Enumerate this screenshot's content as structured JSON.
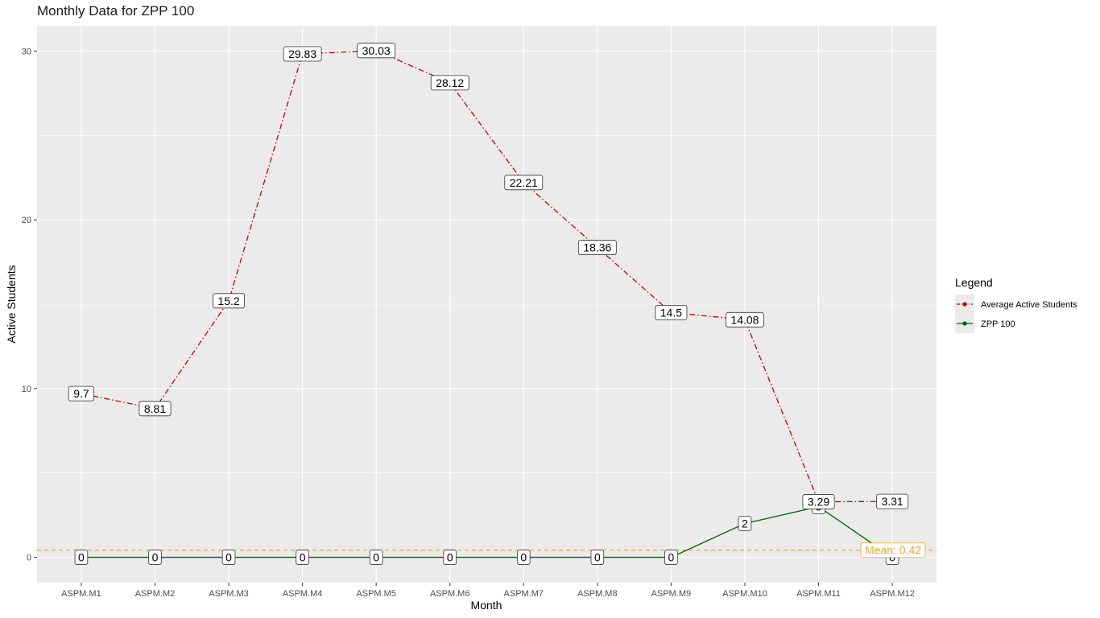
{
  "chart_data": {
    "type": "line",
    "title": "Monthly Data for ZPP 100",
    "xlabel": "Month",
    "ylabel": "Active Students",
    "categories": [
      "ASPM.M1",
      "ASPM.M2",
      "ASPM.M3",
      "ASPM.M4",
      "ASPM.M5",
      "ASPM.M6",
      "ASPM.M7",
      "ASPM.M8",
      "ASPM.M9",
      "ASPM.M10",
      "ASPM.M11",
      "ASPM.M12"
    ],
    "ylim": [
      -1.5,
      31.5
    ],
    "yticks": [
      0,
      10,
      20,
      30
    ],
    "grid": true,
    "series": [
      {
        "name": "Average Active Students",
        "values": [
          9.7,
          8.81,
          15.2,
          29.83,
          30.03,
          28.12,
          22.21,
          18.36,
          14.5,
          14.08,
          3.29,
          3.31
        ],
        "labels": [
          "9.7",
          "8.81",
          "15.2",
          "29.83",
          "30.03",
          "28.12",
          "22.21",
          "18.36",
          "14.5",
          "14.08",
          "3.29",
          "3.31"
        ],
        "color": "#cc0000",
        "linestyle": "dashdot"
      },
      {
        "name": "ZPP 100",
        "values": [
          0,
          0,
          0,
          0,
          0,
          0,
          0,
          0,
          0,
          2,
          3,
          0
        ],
        "labels": [
          "0",
          "0",
          "0",
          "0",
          "0",
          "0",
          "0",
          "0",
          "0",
          "2",
          "3",
          "0"
        ],
        "color": "#006400",
        "linestyle": "solid"
      }
    ],
    "mean_line": {
      "value": 0.42,
      "label": "Mean: 0.42",
      "color": "#f5a623"
    },
    "legend": {
      "title": "Legend",
      "position": "right"
    }
  }
}
